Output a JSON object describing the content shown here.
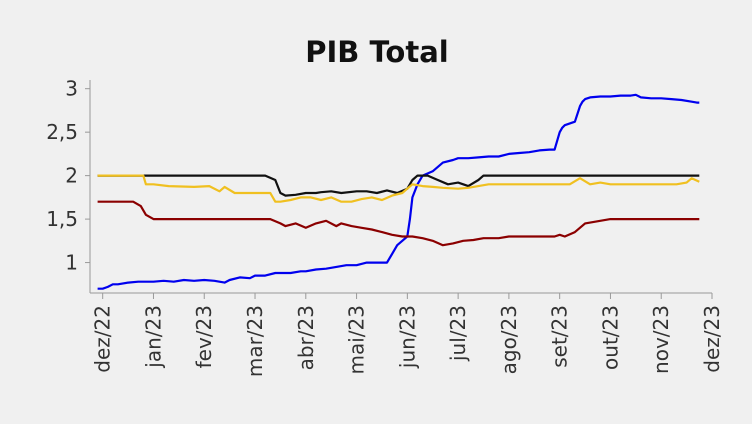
{
  "chart_data": {
    "type": "line",
    "title": "PIB Total",
    "xlabel": "",
    "ylabel": "",
    "x_tick_labels": [
      "dez/22",
      "jan/23",
      "fev/23",
      "mar/23",
      "abr/23",
      "mai/23",
      "jun/23",
      "jul/23",
      "ago/23",
      "set/23",
      "out/23",
      "nov/23",
      "dez/23"
    ],
    "y_tick_labels": [
      "1",
      "1,5",
      "2",
      "2,5",
      "3"
    ],
    "y_tick_values": [
      1,
      1.5,
      2,
      2.5,
      3
    ],
    "xlim": [
      -0.25,
      12.0
    ],
    "ylim": [
      0.65,
      3.1
    ],
    "grid": false,
    "legend": "none",
    "series": [
      {
        "color": "#0000ee",
        "x": [
          -0.1,
          0.0,
          0.1,
          0.2,
          0.3,
          0.5,
          0.7,
          0.9,
          1.0,
          1.2,
          1.4,
          1.6,
          1.8,
          2.0,
          2.2,
          2.4,
          2.5,
          2.7,
          2.9,
          3.0,
          3.2,
          3.4,
          3.5,
          3.7,
          3.9,
          4.0,
          4.2,
          4.4,
          4.6,
          4.8,
          5.0,
          5.2,
          5.4,
          5.6,
          5.7,
          5.8,
          5.9,
          6.0,
          6.05,
          6.1,
          6.2,
          6.3,
          6.5,
          6.7,
          6.9,
          7.0,
          7.2,
          7.4,
          7.6,
          7.8,
          8.0,
          8.2,
          8.4,
          8.6,
          8.8,
          8.9,
          9.0,
          9.05,
          9.1,
          9.3,
          9.4,
          9.45,
          9.5,
          9.6,
          9.8,
          10.0,
          10.2,
          10.4,
          10.5,
          10.6,
          10.8,
          11.0,
          11.2,
          11.4,
          11.6,
          11.7,
          11.75
        ],
        "values": [
          0.7,
          0.7,
          0.72,
          0.75,
          0.75,
          0.77,
          0.78,
          0.78,
          0.78,
          0.79,
          0.78,
          0.8,
          0.79,
          0.8,
          0.79,
          0.77,
          0.8,
          0.83,
          0.82,
          0.85,
          0.85,
          0.88,
          0.88,
          0.88,
          0.9,
          0.9,
          0.92,
          0.93,
          0.95,
          0.97,
          0.97,
          1.0,
          1.0,
          1.0,
          1.1,
          1.2,
          1.25,
          1.3,
          1.5,
          1.75,
          1.9,
          2.0,
          2.05,
          2.15,
          2.18,
          2.2,
          2.2,
          2.21,
          2.22,
          2.22,
          2.25,
          2.26,
          2.27,
          2.29,
          2.3,
          2.3,
          2.5,
          2.55,
          2.58,
          2.62,
          2.8,
          2.85,
          2.88,
          2.9,
          2.91,
          2.91,
          2.92,
          2.92,
          2.93,
          2.9,
          2.89,
          2.89,
          2.88,
          2.87,
          2.85,
          2.84,
          2.84
        ]
      },
      {
        "color": "#111111",
        "x": [
          -0.1,
          0.3,
          0.6,
          0.9,
          1.3,
          1.8,
          2.3,
          2.8,
          3.2,
          3.4,
          3.5,
          3.6,
          3.8,
          4.0,
          4.2,
          4.3,
          4.5,
          4.7,
          5.0,
          5.2,
          5.4,
          5.6,
          5.8,
          6.0,
          6.1,
          6.2,
          6.4,
          6.6,
          6.8,
          7.0,
          7.2,
          7.4,
          7.5,
          7.7,
          8.0,
          8.5,
          9.0,
          9.5,
          10.0,
          10.5,
          11.0,
          11.5,
          11.75
        ],
        "values": [
          2.0,
          2.0,
          2.0,
          2.0,
          2.0,
          2.0,
          2.0,
          2.0,
          2.0,
          1.95,
          1.8,
          1.77,
          1.78,
          1.8,
          1.8,
          1.81,
          1.82,
          1.8,
          1.82,
          1.82,
          1.8,
          1.83,
          1.8,
          1.85,
          1.95,
          2.0,
          2.0,
          1.95,
          1.9,
          1.92,
          1.88,
          1.95,
          2.0,
          2.0,
          2.0,
          2.0,
          2.0,
          2.0,
          2.0,
          2.0,
          2.0,
          2.0,
          2.0
        ]
      },
      {
        "color": "#f0c020",
        "x": [
          -0.1,
          0.3,
          0.6,
          0.8,
          0.85,
          1.0,
          1.3,
          1.8,
          2.1,
          2.3,
          2.4,
          2.6,
          3.0,
          3.3,
          3.4,
          3.5,
          3.7,
          3.9,
          4.1,
          4.3,
          4.5,
          4.7,
          4.9,
          5.1,
          5.3,
          5.5,
          5.7,
          5.9,
          6.0,
          6.1,
          6.3,
          6.5,
          6.7,
          7.0,
          7.2,
          7.4,
          7.6,
          8.0,
          8.5,
          9.0,
          9.2,
          9.4,
          9.6,
          9.8,
          10.0,
          10.5,
          11.0,
          11.3,
          11.5,
          11.6,
          11.75
        ],
        "values": [
          2.0,
          2.0,
          2.0,
          2.0,
          1.9,
          1.9,
          1.88,
          1.87,
          1.88,
          1.82,
          1.87,
          1.8,
          1.8,
          1.8,
          1.7,
          1.7,
          1.72,
          1.75,
          1.75,
          1.72,
          1.75,
          1.7,
          1.7,
          1.73,
          1.75,
          1.72,
          1.77,
          1.8,
          1.85,
          1.9,
          1.88,
          1.87,
          1.86,
          1.85,
          1.86,
          1.88,
          1.9,
          1.9,
          1.9,
          1.9,
          1.9,
          1.97,
          1.9,
          1.92,
          1.9,
          1.9,
          1.9,
          1.9,
          1.92,
          1.97,
          1.93
        ]
      },
      {
        "color": "#8b0000",
        "x": [
          -0.1,
          0.3,
          0.6,
          0.75,
          0.85,
          1.0,
          1.5,
          2.0,
          2.5,
          3.0,
          3.3,
          3.5,
          3.6,
          3.8,
          4.0,
          4.2,
          4.4,
          4.6,
          4.7,
          4.9,
          5.1,
          5.3,
          5.5,
          5.7,
          5.9,
          6.1,
          6.3,
          6.5,
          6.7,
          6.9,
          7.1,
          7.3,
          7.5,
          7.8,
          8.0,
          8.3,
          8.6,
          8.9,
          9.0,
          9.1,
          9.3,
          9.5,
          10.0,
          10.5,
          11.0,
          11.5,
          11.75
        ],
        "values": [
          1.7,
          1.7,
          1.7,
          1.65,
          1.55,
          1.5,
          1.5,
          1.5,
          1.5,
          1.5,
          1.5,
          1.45,
          1.42,
          1.45,
          1.4,
          1.45,
          1.48,
          1.42,
          1.45,
          1.42,
          1.4,
          1.38,
          1.35,
          1.32,
          1.3,
          1.3,
          1.28,
          1.25,
          1.2,
          1.22,
          1.25,
          1.26,
          1.28,
          1.28,
          1.3,
          1.3,
          1.3,
          1.3,
          1.32,
          1.3,
          1.35,
          1.45,
          1.5,
          1.5,
          1.5,
          1.5,
          1.5
        ]
      }
    ]
  }
}
